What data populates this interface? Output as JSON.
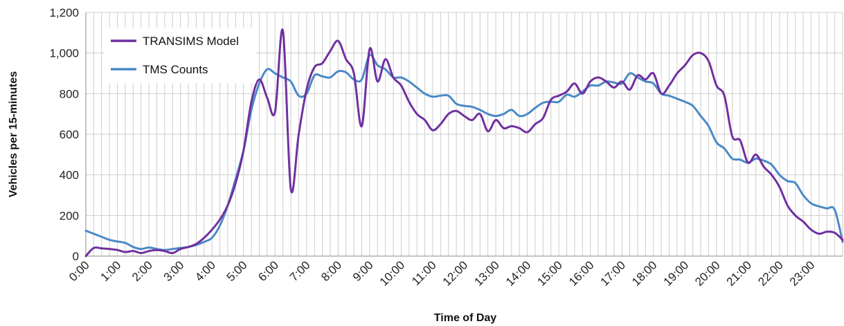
{
  "chart_data": {
    "type": "line",
    "title": "",
    "xlabel": "Time of Day",
    "ylabel": "Vehicles per 15-minutes",
    "xlim": [
      0,
      24
    ],
    "ylim": [
      0,
      1200
    ],
    "y_ticks": [
      0,
      200,
      400,
      600,
      800,
      1000,
      1200
    ],
    "y_tick_labels": [
      "0",
      "200",
      "400",
      "600",
      "800",
      "1,000",
      "1,200"
    ],
    "x_tick_labels": [
      "0:00",
      "1:00",
      "2:00",
      "3:00",
      "4:00",
      "5:00",
      "6:00",
      "7:00",
      "8:00",
      "9:00",
      "10:00",
      "11:00",
      "12:00",
      "13:00",
      "14:00",
      "15:00",
      "16:00",
      "17:00",
      "18:00",
      "19:00",
      "20:00",
      "21:00",
      "22:00",
      "23:00"
    ],
    "grid": true,
    "legend_position": "top-left",
    "series": [
      {
        "name": "TRANSIMS Model",
        "color": "#7030a0",
        "points": [
          [
            0,
            0
          ],
          [
            0.25,
            40
          ],
          [
            0.5,
            38
          ],
          [
            0.75,
            35
          ],
          [
            1.0,
            30
          ],
          [
            1.25,
            20
          ],
          [
            1.5,
            25
          ],
          [
            1.75,
            15
          ],
          [
            2.0,
            25
          ],
          [
            2.25,
            30
          ],
          [
            2.5,
            25
          ],
          [
            2.75,
            15
          ],
          [
            3.0,
            35
          ],
          [
            3.25,
            45
          ],
          [
            3.5,
            60
          ],
          [
            3.75,
            90
          ],
          [
            4.0,
            130
          ],
          [
            4.25,
            180
          ],
          [
            4.5,
            250
          ],
          [
            4.75,
            360
          ],
          [
            5.0,
            520
          ],
          [
            5.25,
            760
          ],
          [
            5.5,
            870
          ],
          [
            5.75,
            780
          ],
          [
            6.0,
            710
          ],
          [
            6.25,
            1110
          ],
          [
            6.5,
            330
          ],
          [
            6.75,
            600
          ],
          [
            7.0,
            820
          ],
          [
            7.25,
            930
          ],
          [
            7.5,
            950
          ],
          [
            7.75,
            1010
          ],
          [
            8.0,
            1060
          ],
          [
            8.25,
            970
          ],
          [
            8.5,
            900
          ],
          [
            8.75,
            640
          ],
          [
            9.0,
            1020
          ],
          [
            9.25,
            860
          ],
          [
            9.5,
            970
          ],
          [
            9.75,
            880
          ],
          [
            10.0,
            840
          ],
          [
            10.25,
            760
          ],
          [
            10.5,
            700
          ],
          [
            10.75,
            670
          ],
          [
            11.0,
            620
          ],
          [
            11.25,
            650
          ],
          [
            11.5,
            700
          ],
          [
            11.75,
            715
          ],
          [
            12.0,
            690
          ],
          [
            12.25,
            670
          ],
          [
            12.5,
            700
          ],
          [
            12.75,
            615
          ],
          [
            13.0,
            670
          ],
          [
            13.25,
            630
          ],
          [
            13.5,
            640
          ],
          [
            13.75,
            630
          ],
          [
            14.0,
            610
          ],
          [
            14.25,
            650
          ],
          [
            14.5,
            680
          ],
          [
            14.75,
            770
          ],
          [
            15.0,
            790
          ],
          [
            15.25,
            810
          ],
          [
            15.5,
            850
          ],
          [
            15.75,
            800
          ],
          [
            16.0,
            860
          ],
          [
            16.25,
            880
          ],
          [
            16.5,
            860
          ],
          [
            16.75,
            830
          ],
          [
            17.0,
            860
          ],
          [
            17.25,
            820
          ],
          [
            17.5,
            890
          ],
          [
            17.75,
            870
          ],
          [
            18.0,
            900
          ],
          [
            18.25,
            800
          ],
          [
            18.5,
            840
          ],
          [
            18.75,
            900
          ],
          [
            19.0,
            940
          ],
          [
            19.25,
            990
          ],
          [
            19.5,
            1000
          ],
          [
            19.75,
            960
          ],
          [
            20.0,
            840
          ],
          [
            20.25,
            790
          ],
          [
            20.5,
            590
          ],
          [
            20.75,
            570
          ],
          [
            21.0,
            460
          ],
          [
            21.25,
            500
          ],
          [
            21.5,
            440
          ],
          [
            21.75,
            400
          ],
          [
            22.0,
            340
          ],
          [
            22.25,
            250
          ],
          [
            22.5,
            200
          ],
          [
            22.75,
            170
          ],
          [
            23.0,
            130
          ],
          [
            23.25,
            110
          ],
          [
            23.5,
            120
          ],
          [
            23.75,
            115
          ],
          [
            24.0,
            80
          ]
        ]
      },
      {
        "name": "TMS Counts",
        "color": "#4a89c7",
        "points": [
          [
            0,
            125
          ],
          [
            0.25,
            110
          ],
          [
            0.5,
            95
          ],
          [
            0.75,
            80
          ],
          [
            1.0,
            72
          ],
          [
            1.25,
            65
          ],
          [
            1.5,
            45
          ],
          [
            1.75,
            35
          ],
          [
            2.0,
            42
          ],
          [
            2.25,
            35
          ],
          [
            2.5,
            30
          ],
          [
            2.75,
            35
          ],
          [
            3.0,
            40
          ],
          [
            3.25,
            45
          ],
          [
            3.5,
            55
          ],
          [
            3.75,
            70
          ],
          [
            4.0,
            90
          ],
          [
            4.25,
            150
          ],
          [
            4.5,
            250
          ],
          [
            4.75,
            380
          ],
          [
            5.0,
            520
          ],
          [
            5.25,
            720
          ],
          [
            5.5,
            850
          ],
          [
            5.75,
            920
          ],
          [
            6.0,
            900
          ],
          [
            6.25,
            880
          ],
          [
            6.5,
            860
          ],
          [
            6.75,
            790
          ],
          [
            7.0,
            800
          ],
          [
            7.25,
            890
          ],
          [
            7.5,
            885
          ],
          [
            7.75,
            880
          ],
          [
            8.0,
            910
          ],
          [
            8.25,
            905
          ],
          [
            8.5,
            870
          ],
          [
            8.75,
            870
          ],
          [
            9.0,
            990
          ],
          [
            9.25,
            940
          ],
          [
            9.5,
            920
          ],
          [
            9.75,
            880
          ],
          [
            10.0,
            880
          ],
          [
            10.25,
            860
          ],
          [
            10.5,
            830
          ],
          [
            10.75,
            800
          ],
          [
            11.0,
            785
          ],
          [
            11.25,
            790
          ],
          [
            11.5,
            790
          ],
          [
            11.75,
            750
          ],
          [
            12.0,
            740
          ],
          [
            12.25,
            735
          ],
          [
            12.5,
            720
          ],
          [
            12.75,
            700
          ],
          [
            13.0,
            690
          ],
          [
            13.25,
            700
          ],
          [
            13.5,
            720
          ],
          [
            13.75,
            690
          ],
          [
            14.0,
            700
          ],
          [
            14.25,
            730
          ],
          [
            14.5,
            755
          ],
          [
            14.75,
            760
          ],
          [
            15.0,
            760
          ],
          [
            15.25,
            795
          ],
          [
            15.5,
            785
          ],
          [
            15.75,
            810
          ],
          [
            16.0,
            840
          ],
          [
            16.25,
            840
          ],
          [
            16.5,
            860
          ],
          [
            16.75,
            855
          ],
          [
            17.0,
            850
          ],
          [
            17.25,
            900
          ],
          [
            17.5,
            880
          ],
          [
            17.75,
            860
          ],
          [
            18.0,
            850
          ],
          [
            18.25,
            800
          ],
          [
            18.5,
            790
          ],
          [
            18.75,
            775
          ],
          [
            19.0,
            760
          ],
          [
            19.25,
            740
          ],
          [
            19.5,
            690
          ],
          [
            19.75,
            640
          ],
          [
            20.0,
            560
          ],
          [
            20.25,
            530
          ],
          [
            20.5,
            480
          ],
          [
            20.75,
            475
          ],
          [
            21.0,
            460
          ],
          [
            21.25,
            480
          ],
          [
            21.5,
            470
          ],
          [
            21.75,
            450
          ],
          [
            22.0,
            400
          ],
          [
            22.25,
            370
          ],
          [
            22.5,
            360
          ],
          [
            22.75,
            300
          ],
          [
            23.0,
            260
          ],
          [
            23.25,
            245
          ],
          [
            23.5,
            235
          ],
          [
            23.75,
            228
          ],
          [
            24.0,
            70
          ]
        ]
      }
    ]
  }
}
